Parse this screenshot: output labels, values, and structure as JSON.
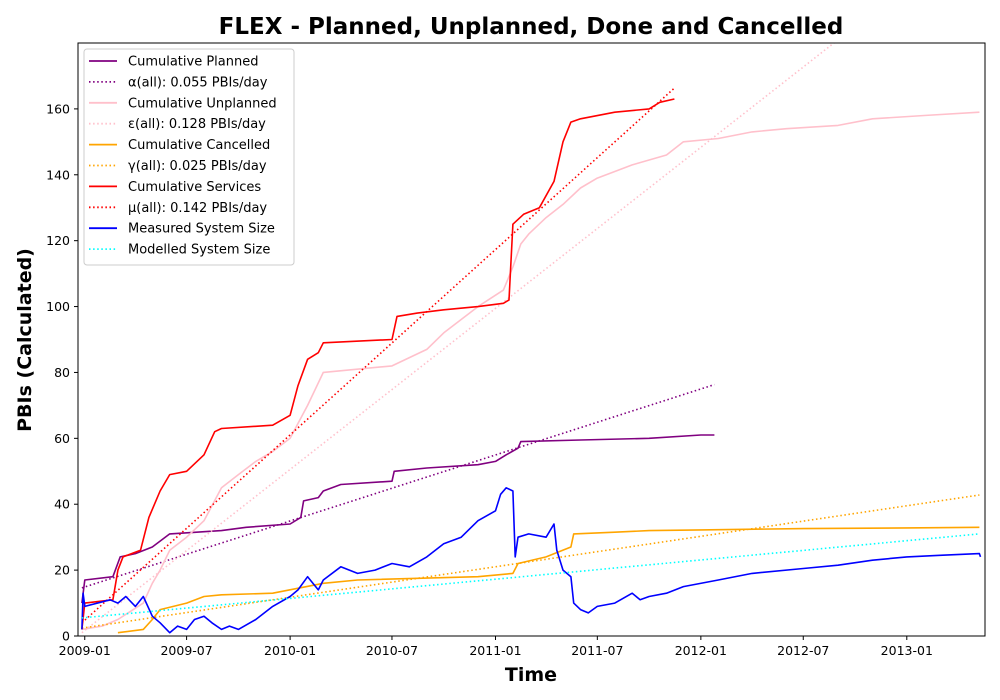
{
  "chart_data": {
    "type": "line",
    "title": "FLEX - Planned, Unplanned, Done  and Cancelled",
    "xlabel": "Time",
    "ylabel": "PBIs (Calculated)",
    "xlim": [
      "2008-12-20",
      "2013-05-20"
    ],
    "ylim": [
      0,
      180
    ],
    "x_ticks": [
      {
        "date": "2009-01-01",
        "label": "2009-01"
      },
      {
        "date": "2009-07-01",
        "label": "2009-07"
      },
      {
        "date": "2010-01-01",
        "label": "2010-01"
      },
      {
        "date": "2010-07-01",
        "label": "2010-07"
      },
      {
        "date": "2011-01-01",
        "label": "2011-01"
      },
      {
        "date": "2011-07-01",
        "label": "2011-07"
      },
      {
        "date": "2012-01-01",
        "label": "2012-01"
      },
      {
        "date": "2012-07-01",
        "label": "2012-07"
      },
      {
        "date": "2013-01-01",
        "label": "2013-01"
      }
    ],
    "y_ticks": [
      0,
      20,
      40,
      60,
      80,
      100,
      120,
      140,
      160
    ],
    "grid": false,
    "legend_position": "upper-left",
    "series": [
      {
        "name": "Cumulative Planned",
        "color": "#800080",
        "style": "solid",
        "points": [
          [
            "2008-12-27",
            10
          ],
          [
            "2009-01-01",
            17
          ],
          [
            "2009-02-20",
            18
          ],
          [
            "2009-03-05",
            24
          ],
          [
            "2009-04-01",
            25
          ],
          [
            "2009-05-01",
            27
          ],
          [
            "2009-06-01",
            31
          ],
          [
            "2009-09-01",
            32
          ],
          [
            "2009-10-15",
            33
          ],
          [
            "2010-01-01",
            34
          ],
          [
            "2010-01-20",
            36
          ],
          [
            "2010-01-25",
            41
          ],
          [
            "2010-02-20",
            42
          ],
          [
            "2010-03-01",
            44
          ],
          [
            "2010-04-01",
            46
          ],
          [
            "2010-07-01",
            47
          ],
          [
            "2010-07-05",
            50
          ],
          [
            "2010-09-01",
            51
          ],
          [
            "2010-12-01",
            52
          ],
          [
            "2011-01-01",
            53
          ],
          [
            "2011-01-20",
            55
          ],
          [
            "2011-02-10",
            57
          ],
          [
            "2011-02-15",
            59
          ],
          [
            "2011-06-01",
            59.5
          ],
          [
            "2011-10-01",
            60
          ],
          [
            "2012-01-01",
            61
          ],
          [
            "2012-01-25",
            61
          ]
        ]
      },
      {
        "name": "α(all): 0.055 PBIs/day",
        "color": "#800080",
        "style": "dotted",
        "points": [
          [
            "2008-12-27",
            14.6
          ],
          [
            "2012-01-25",
            76.3
          ]
        ]
      },
      {
        "name": "Cumulative Unplanned",
        "color": "#ffc0cb",
        "style": "solid",
        "points": [
          [
            "2008-12-27",
            2
          ],
          [
            "2009-02-01",
            3
          ],
          [
            "2009-03-01",
            5
          ],
          [
            "2009-04-15",
            10
          ],
          [
            "2009-05-01",
            16
          ],
          [
            "2009-05-15",
            20
          ],
          [
            "2009-06-01",
            26
          ],
          [
            "2009-07-01",
            30
          ],
          [
            "2009-08-01",
            35
          ],
          [
            "2009-09-01",
            45
          ],
          [
            "2009-10-01",
            49
          ],
          [
            "2009-11-01",
            53
          ],
          [
            "2009-12-01",
            56
          ],
          [
            "2010-01-01",
            60
          ],
          [
            "2010-02-01",
            70
          ],
          [
            "2010-03-01",
            80
          ],
          [
            "2010-07-01",
            82
          ],
          [
            "2010-09-01",
            87
          ],
          [
            "2010-10-01",
            92
          ],
          [
            "2010-12-01",
            100
          ],
          [
            "2011-01-15",
            105
          ],
          [
            "2011-02-01",
            112
          ],
          [
            "2011-02-15",
            119
          ],
          [
            "2011-03-01",
            122
          ],
          [
            "2011-04-01",
            127
          ],
          [
            "2011-05-01",
            131
          ],
          [
            "2011-06-01",
            136
          ],
          [
            "2011-07-01",
            139
          ],
          [
            "2011-08-01",
            141
          ],
          [
            "2011-09-01",
            143
          ],
          [
            "2011-11-01",
            146
          ],
          [
            "2011-12-01",
            150
          ],
          [
            "2012-02-01",
            151
          ],
          [
            "2012-04-01",
            153
          ],
          [
            "2012-06-01",
            154
          ],
          [
            "2012-09-01",
            155
          ],
          [
            "2012-11-01",
            157
          ],
          [
            "2013-02-01",
            158
          ],
          [
            "2013-05-10",
            159
          ]
        ]
      },
      {
        "name": "ε(all): 0.128 PBIs/day",
        "color": "#ffc0cb",
        "style": "dotted",
        "points": [
          [
            "2008-12-27",
            1
          ],
          [
            "2012-09-01",
            181
          ]
        ]
      },
      {
        "name": "Cumulative Cancelled",
        "color": "#ffa500",
        "style": "solid",
        "points": [
          [
            "2009-03-01",
            1
          ],
          [
            "2009-04-15",
            2
          ],
          [
            "2009-05-01",
            5
          ],
          [
            "2009-05-15",
            8
          ],
          [
            "2009-07-01",
            10
          ],
          [
            "2009-08-01",
            12
          ],
          [
            "2009-09-01",
            12.5
          ],
          [
            "2009-12-01",
            13
          ],
          [
            "2010-03-01",
            16
          ],
          [
            "2010-05-01",
            17
          ],
          [
            "2010-12-01",
            18
          ],
          [
            "2011-02-01",
            19
          ],
          [
            "2011-02-10",
            22
          ],
          [
            "2011-04-01",
            24
          ],
          [
            "2011-05-15",
            27
          ],
          [
            "2011-05-20",
            31
          ],
          [
            "2011-08-01",
            31.5
          ],
          [
            "2011-10-01",
            32
          ],
          [
            "2012-01-01",
            32.2
          ],
          [
            "2012-07-01",
            32.6
          ],
          [
            "2013-01-01",
            32.8
          ],
          [
            "2013-05-10",
            33
          ]
        ]
      },
      {
        "name": "γ(all): 0.025 PBIs/day",
        "color": "#ffa500",
        "style": "dotted",
        "points": [
          [
            "2008-12-27",
            2.4
          ],
          [
            "2013-05-10",
            42.8
          ]
        ]
      },
      {
        "name": "Cumulative Services",
        "color": "#ff0000",
        "style": "solid",
        "points": [
          [
            "2008-12-27",
            2
          ],
          [
            "2009-01-01",
            10
          ],
          [
            "2009-02-20",
            11
          ],
          [
            "2009-03-01",
            20
          ],
          [
            "2009-03-10",
            24
          ],
          [
            "2009-04-10",
            26
          ],
          [
            "2009-04-25",
            36
          ],
          [
            "2009-05-15",
            44
          ],
          [
            "2009-06-01",
            49
          ],
          [
            "2009-07-01",
            50
          ],
          [
            "2009-08-01",
            55
          ],
          [
            "2009-08-20",
            62
          ],
          [
            "2009-09-01",
            63
          ],
          [
            "2009-12-01",
            64
          ],
          [
            "2010-01-01",
            67
          ],
          [
            "2010-01-15",
            76
          ],
          [
            "2010-02-01",
            84
          ],
          [
            "2010-02-20",
            86
          ],
          [
            "2010-03-01",
            89
          ],
          [
            "2010-07-01",
            90
          ],
          [
            "2010-07-10",
            97
          ],
          [
            "2010-08-15",
            98
          ],
          [
            "2010-10-01",
            99
          ],
          [
            "2010-12-01",
            100
          ],
          [
            "2011-01-15",
            101
          ],
          [
            "2011-01-25",
            102
          ],
          [
            "2011-02-01",
            125
          ],
          [
            "2011-02-20",
            128
          ],
          [
            "2011-03-20",
            130
          ],
          [
            "2011-04-15",
            138
          ],
          [
            "2011-05-01",
            150
          ],
          [
            "2011-05-15",
            156
          ],
          [
            "2011-06-01",
            157
          ],
          [
            "2011-08-01",
            159
          ],
          [
            "2011-10-01",
            160
          ],
          [
            "2011-10-20",
            162
          ],
          [
            "2011-11-15",
            163
          ]
        ]
      },
      {
        "name": "μ(all): 0.142 PBIs/day",
        "color": "#ff0000",
        "style": "dotted",
        "points": [
          [
            "2008-12-27",
            4
          ],
          [
            "2011-11-15",
            166.3
          ]
        ]
      },
      {
        "name": "Measured System Size",
        "color": "#0000ff",
        "style": "solid",
        "points": [
          [
            "2008-12-27",
            2
          ],
          [
            "2008-12-29",
            13
          ],
          [
            "2009-01-01",
            9
          ],
          [
            "2009-02-15",
            11
          ],
          [
            "2009-03-01",
            10
          ],
          [
            "2009-03-15",
            12
          ],
          [
            "2009-04-01",
            9
          ],
          [
            "2009-04-15",
            12
          ],
          [
            "2009-05-01",
            6
          ],
          [
            "2009-05-15",
            4
          ],
          [
            "2009-06-01",
            1
          ],
          [
            "2009-06-15",
            3
          ],
          [
            "2009-07-01",
            2
          ],
          [
            "2009-07-15",
            5
          ],
          [
            "2009-08-01",
            6
          ],
          [
            "2009-08-15",
            4
          ],
          [
            "2009-09-01",
            2
          ],
          [
            "2009-09-15",
            3
          ],
          [
            "2009-10-01",
            2
          ],
          [
            "2009-11-01",
            5
          ],
          [
            "2009-12-01",
            9
          ],
          [
            "2010-01-01",
            12
          ],
          [
            "2010-01-15",
            14
          ],
          [
            "2010-02-01",
            18
          ],
          [
            "2010-02-20",
            14
          ],
          [
            "2010-03-01",
            17
          ],
          [
            "2010-04-01",
            21
          ],
          [
            "2010-05-01",
            19
          ],
          [
            "2010-06-01",
            20
          ],
          [
            "2010-07-01",
            22
          ],
          [
            "2010-08-01",
            21
          ],
          [
            "2010-09-01",
            24
          ],
          [
            "2010-10-01",
            28
          ],
          [
            "2010-11-01",
            30
          ],
          [
            "2010-12-01",
            35
          ],
          [
            "2011-01-01",
            38
          ],
          [
            "2011-01-10",
            43
          ],
          [
            "2011-01-20",
            45
          ],
          [
            "2011-02-01",
            44
          ],
          [
            "2011-02-05",
            24
          ],
          [
            "2011-02-10",
            30
          ],
          [
            "2011-03-01",
            31
          ],
          [
            "2011-04-01",
            30
          ],
          [
            "2011-04-15",
            34
          ],
          [
            "2011-04-20",
            26
          ],
          [
            "2011-05-01",
            20
          ],
          [
            "2011-05-15",
            18
          ],
          [
            "2011-05-20",
            10
          ],
          [
            "2011-06-01",
            8
          ],
          [
            "2011-06-15",
            7
          ],
          [
            "2011-07-01",
            9
          ],
          [
            "2011-08-01",
            10
          ],
          [
            "2011-09-01",
            13
          ],
          [
            "2011-09-15",
            11
          ],
          [
            "2011-10-01",
            12
          ],
          [
            "2011-11-01",
            13
          ],
          [
            "2011-12-01",
            15
          ],
          [
            "2012-02-01",
            17
          ],
          [
            "2012-04-01",
            19
          ],
          [
            "2012-07-01",
            20.5
          ],
          [
            "2012-09-01",
            21.5
          ],
          [
            "2012-11-01",
            23
          ],
          [
            "2013-01-01",
            24
          ],
          [
            "2013-03-01",
            24.5
          ],
          [
            "2013-05-10",
            25
          ],
          [
            "2013-05-12",
            24
          ]
        ]
      },
      {
        "name": "Modelled System Size",
        "color": "#00ffff",
        "style": "dotted",
        "points": [
          [
            "2008-12-27",
            5.5
          ],
          [
            "2013-05-10",
            31
          ]
        ]
      }
    ]
  }
}
